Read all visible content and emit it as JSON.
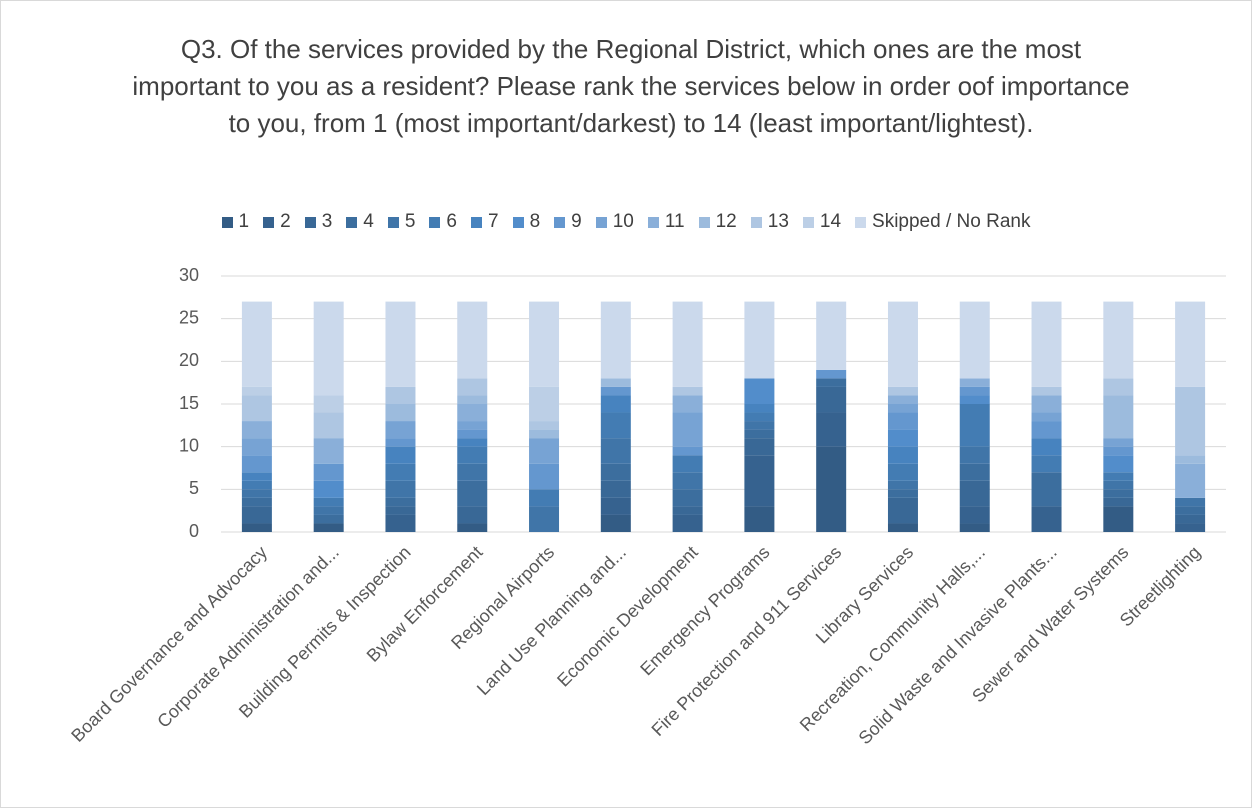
{
  "chart_data": {
    "type": "stacked_bar",
    "title": "Q3. Of the services provided by the Regional District, which ones are the most important to you as a resident? Please rank the services below in order oof importance to you, from 1 (most important/darkest) to 14 (least important/lightest).",
    "categories": [
      "Board Governance and Advocacy",
      "Corporate Administration and...",
      "Building Permits & Inspection",
      "Bylaw Enforcement",
      "Regional Airports",
      "Land Use Planning and...",
      "Economic Development",
      "Emergency Programs",
      "Fire Protection and 911 Services",
      "Library Services",
      "Recreation, Community Halls,...",
      "Solid Waste and Invasive Plants...",
      "Sewer and Water Systems",
      "Streetlighting"
    ],
    "series": [
      {
        "name": "1",
        "color": "#335c85",
        "values": [
          1,
          1,
          0,
          1,
          0,
          2,
          0,
          3,
          10,
          1,
          1,
          0,
          3,
          0
        ]
      },
      {
        "name": "2",
        "color": "#36628f",
        "values": [
          0,
          0,
          2,
          0,
          0,
          2,
          2,
          6,
          4,
          0,
          2,
          3,
          0,
          1
        ]
      },
      {
        "name": "3",
        "color": "#396896",
        "values": [
          2,
          0,
          1,
          2,
          0,
          2,
          1,
          2,
          3,
          3,
          3,
          0,
          1,
          1
        ]
      },
      {
        "name": "4",
        "color": "#3c6e9e",
        "values": [
          1,
          1,
          1,
          3,
          0,
          2,
          2,
          1,
          1,
          1,
          2,
          4,
          1,
          1
        ]
      },
      {
        "name": "5",
        "color": "#4075a8",
        "values": [
          1,
          1,
          2,
          2,
          3,
          3,
          2,
          1,
          0,
          1,
          2,
          0,
          1,
          1
        ]
      },
      {
        "name": "6",
        "color": "#437cb3",
        "values": [
          1,
          1,
          2,
          2,
          2,
          3,
          2,
          1,
          0,
          2,
          5,
          2,
          1,
          0
        ]
      },
      {
        "name": "7",
        "color": "#4783bf",
        "values": [
          1,
          0,
          2,
          1,
          0,
          2,
          0,
          1,
          0,
          2,
          0,
          2,
          0,
          0
        ]
      },
      {
        "name": "8",
        "color": "#528dcb",
        "values": [
          0,
          2,
          0,
          0,
          0,
          0,
          0,
          3,
          0,
          2,
          1,
          0,
          2,
          0
        ]
      },
      {
        "name": "9",
        "color": "#6497cf",
        "values": [
          2,
          2,
          1,
          1,
          3,
          1,
          1,
          0,
          1,
          2,
          1,
          2,
          1,
          0
        ]
      },
      {
        "name": "10",
        "color": "#77a3d4",
        "values": [
          2,
          0,
          2,
          1,
          3,
          0,
          4,
          0,
          0,
          1,
          0,
          1,
          1,
          0
        ]
      },
      {
        "name": "11",
        "color": "#8aafd9",
        "values": [
          2,
          3,
          0,
          2,
          0,
          0,
          2,
          0,
          0,
          1,
          1,
          2,
          0,
          4
        ]
      },
      {
        "name": "12",
        "color": "#9cbbdd",
        "values": [
          0,
          0,
          2,
          1,
          1,
          1,
          0,
          0,
          0,
          0,
          0,
          0,
          5,
          1
        ]
      },
      {
        "name": "13",
        "color": "#aec6e2",
        "values": [
          3,
          3,
          2,
          2,
          1,
          0,
          1,
          0,
          0,
          1,
          0,
          1,
          2,
          8
        ]
      },
      {
        "name": "14",
        "color": "#bccfe6",
        "values": [
          1,
          2,
          0,
          0,
          4,
          0,
          0,
          0,
          0,
          0,
          0,
          0,
          0,
          0
        ]
      },
      {
        "name": "Skipped / No Rank",
        "color": "#cbd9ec",
        "values": [
          10,
          11,
          10,
          9,
          10,
          9,
          10,
          9,
          8,
          10,
          9,
          10,
          9,
          10
        ]
      }
    ],
    "ylim": [
      0,
      30
    ],
    "yticks": [
      0,
      5,
      10,
      15,
      20,
      25,
      30
    ],
    "grid": true,
    "legend": "top"
  }
}
